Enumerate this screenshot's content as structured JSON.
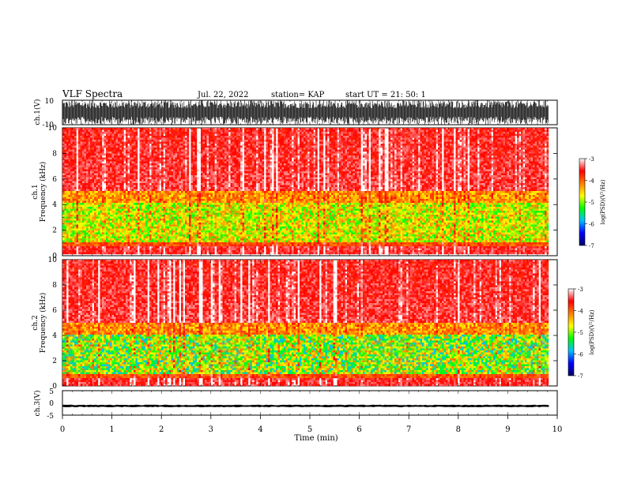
{
  "header": {
    "title": "VLF Spectra",
    "date": "Jul. 22, 2022",
    "station": "station= KAP",
    "start": "start UT = 21: 50: 1"
  },
  "chart_data": [
    {
      "id": "ch1-waveform",
      "type": "line",
      "ylabel": "ch.1(V)",
      "ylim": [
        -10,
        10
      ],
      "yticks": [
        10,
        -10
      ],
      "xlim": [
        0,
        10
      ],
      "description_of_values": "dense black waveform spanning nearly full range",
      "envelope": {
        "min": -10,
        "max": 10
      }
    },
    {
      "id": "ch1-spectrogram",
      "type": "heatmap",
      "ylabel": "ch.1\nFrequency (kHz)",
      "ylabel_lines": [
        "ch.1",
        "Frequency (kHz)"
      ],
      "ylim": [
        0,
        10
      ],
      "yticks": [
        0,
        2,
        4,
        6,
        8,
        10
      ],
      "xlim": [
        0,
        9.83
      ],
      "colorbar": {
        "label": "log(PSD)(V²/Hz)",
        "range": [
          -7,
          -3
        ],
        "ticks": [
          -3,
          -4,
          -5,
          -6,
          -7
        ],
        "colors": [
          "#000066",
          "#0000ff",
          "#00c0ff",
          "#00ff00",
          "#ffff00",
          "#ff8000",
          "#ff0000",
          "#ffffff"
        ]
      }
    },
    {
      "id": "ch2-spectrogram",
      "type": "heatmap",
      "ylabel": "ch.2\nFrequency (kHz)",
      "ylabel_lines": [
        "ch.2",
        "Frequency (kHz)"
      ],
      "ylim": [
        0,
        10
      ],
      "yticks": [
        0,
        2,
        4,
        6,
        8,
        10
      ],
      "xlim": [
        0,
        9.83
      ],
      "colorbar": {
        "label": "log(PSD)(V²/Hz)",
        "range": [
          -7,
          -3
        ],
        "ticks": [
          -3,
          -4,
          -5,
          -6,
          -7
        ],
        "colors": [
          "#000066",
          "#0000ff",
          "#00c0ff",
          "#00ff00",
          "#ffff00",
          "#ff8000",
          "#ff0000",
          "#ffffff"
        ]
      }
    },
    {
      "id": "ch3-waveform",
      "type": "line",
      "ylabel": "ch.3(V)",
      "ylim": [
        -5,
        5
      ],
      "yticks": [
        5,
        0,
        -5
      ],
      "ytick_labels": [
        "5",
        "0",
        "-5"
      ],
      "xlim": [
        0,
        10
      ],
      "xlabel": "Time (min)",
      "xticks": [
        0,
        1,
        2,
        3,
        4,
        5,
        6,
        7,
        8,
        9,
        10
      ],
      "envelope": {
        "min": -1.7,
        "max": -0.8
      }
    }
  ]
}
